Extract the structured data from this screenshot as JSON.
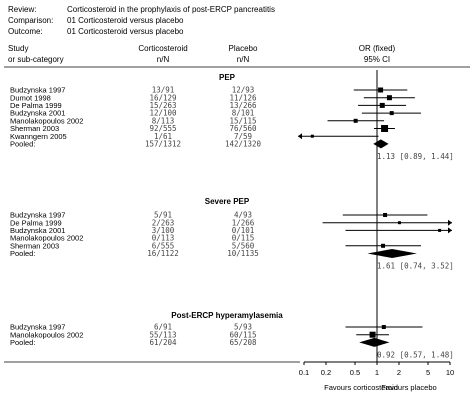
{
  "header": {
    "rows": [
      {
        "label": "Review:",
        "value": "Corticosteroid in the prophylaxis of post-ERCP pancreatitis"
      },
      {
        "label": "Comparison:",
        "value": "01 Corticosteroid versus placebo"
      },
      {
        "label": "Outcome:",
        "value": "01 Corticosteroid versus placebo"
      }
    ]
  },
  "columns": {
    "study_line1": "Study",
    "study_line2": "or sub-category",
    "treat_line1": "Corticosteroid",
    "treat_line2": "n/N",
    "ctrl_line1": "Placebo",
    "ctrl_line2": "n/N",
    "effect_line1": "OR (fixed)",
    "effect_line2": "95% CI"
  },
  "chart_data": {
    "type": "forest",
    "scale": "log",
    "xlim": [
      0.1,
      10
    ],
    "ticks": [
      {
        "value": 0.1,
        "label": "0.1"
      },
      {
        "value": 0.2,
        "label": "0.2"
      },
      {
        "value": 0.5,
        "label": "0.5"
      },
      {
        "value": 1,
        "label": "1"
      },
      {
        "value": 2,
        "label": "2"
      },
      {
        "value": 5,
        "label": "5"
      },
      {
        "value": 10,
        "label": "10"
      }
    ],
    "favours_left": "Favours corticosteroid",
    "favours_right": "Favours placebo",
    "groups": [
      {
        "title": "PEP",
        "studies": [
          {
            "name": "Budzynska 1997",
            "treat": "13/91",
            "ctrl": "12/93",
            "or": 1.12,
            "lo": 0.48,
            "hi": 2.6,
            "w": 5
          },
          {
            "name": "Dumot 1998",
            "treat": "16/129",
            "ctrl": "11/126",
            "or": 1.48,
            "lo": 0.66,
            "hi": 3.3,
            "w": 5
          },
          {
            "name": "De Palma 1999",
            "treat": "15/263",
            "ctrl": "13/266",
            "or": 1.18,
            "lo": 0.55,
            "hi": 2.5,
            "w": 5
          },
          {
            "name": "Budzynska 2001",
            "treat": "12/100",
            "ctrl": "8/101",
            "or": 1.59,
            "lo": 0.62,
            "hi": 4.0,
            "w": 4
          },
          {
            "name": "Manolakopoulos 2002",
            "treat": "8/113",
            "ctrl": "15/115",
            "or": 0.51,
            "lo": 0.21,
            "hi": 1.25,
            "w": 4
          },
          {
            "name": "Sherman 2003",
            "treat": "92/555",
            "ctrl": "76/560",
            "or": 1.27,
            "lo": 0.91,
            "hi": 1.76,
            "w": 7
          },
          {
            "name": "Kwanngern 2005",
            "treat": "1/61",
            "ctrl": "7/59",
            "or": 0.13,
            "lo": 0.015,
            "hi": 1.05,
            "w": 3
          }
        ],
        "pooled": {
          "name": "Pooled:",
          "treat": "157/1312",
          "ctrl": "142/1320",
          "or": 1.13,
          "lo": 0.89,
          "hi": 1.44,
          "text": "1.13 [0.89, 1.44]"
        }
      },
      {
        "title": "Severe PEP",
        "studies": [
          {
            "name": "Budzynska 1997",
            "treat": "5/91",
            "ctrl": "4/93",
            "or": 1.29,
            "lo": 0.34,
            "hi": 4.9,
            "w": 4
          },
          {
            "name": "De Palma 1999",
            "treat": "2/263",
            "ctrl": "1/266",
            "or": 2.03,
            "lo": 0.18,
            "hi": 22,
            "w": 3
          },
          {
            "name": "Budzynska 2001",
            "treat": "3/100",
            "ctrl": "0/101",
            "or": 7.2,
            "lo": 0.37,
            "hi": 140,
            "w": 3
          },
          {
            "name": "Manolakopoulos 2002",
            "treat": "0/113",
            "ctrl": "0/115"
          },
          {
            "name": "Sherman 2003",
            "treat": "6/555",
            "ctrl": "5/560",
            "or": 1.21,
            "lo": 0.37,
            "hi": 4.0,
            "w": 4
          }
        ],
        "pooled": {
          "name": "Pooled:",
          "treat": "16/1122",
          "ctrl": "10/1135",
          "or": 1.61,
          "lo": 0.74,
          "hi": 3.52,
          "text": "1.61 [0.74, 3.52]"
        }
      },
      {
        "title": "Post-ERCP hyperamylasemia",
        "studies": [
          {
            "name": "Budzynska 1997",
            "treat": "6/91",
            "ctrl": "5/93",
            "or": 1.24,
            "lo": 0.37,
            "hi": 4.2,
            "w": 4
          },
          {
            "name": "Manolakopoulos 2002",
            "treat": "55/113",
            "ctrl": "60/115",
            "or": 0.87,
            "lo": 0.52,
            "hi": 1.46,
            "w": 6
          }
        ],
        "pooled": {
          "name": "Pooled:",
          "treat": "61/204",
          "ctrl": "65/208",
          "or": 0.92,
          "lo": 0.57,
          "hi": 1.48,
          "text": "0.92 [0.57, 1.48]"
        }
      }
    ]
  }
}
